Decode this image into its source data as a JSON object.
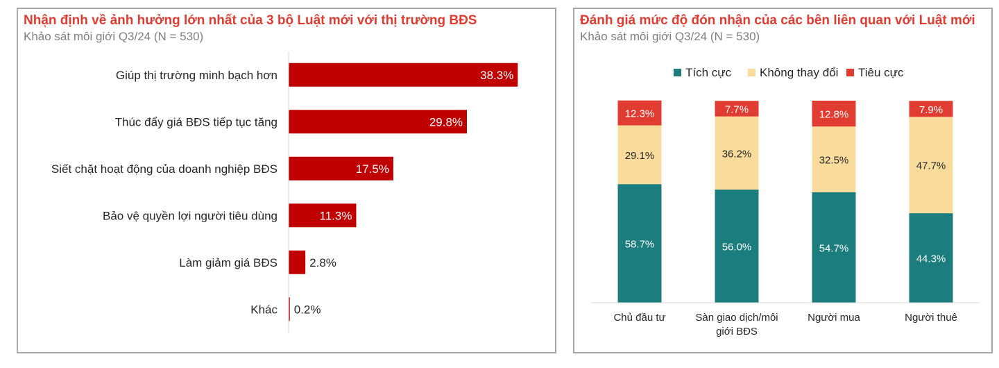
{
  "chart_data": [
    {
      "type": "bar",
      "orientation": "horizontal",
      "title": "Nhận định về ảnh hưởng lớn nhất của 3 bộ Luật mới với thị trường BĐS",
      "subtitle": "Khảo sát môi giới Q3/24 (N = 530)",
      "categories": [
        "Giúp thị trường minh bạch hơn",
        "Thúc đẩy giá BĐS tiếp tục tăng",
        "Siết chặt hoạt động của doanh nghiệp BĐS",
        "Bảo vệ quyền lợi người tiêu dùng",
        "Làm giảm giá BĐS",
        "Khác"
      ],
      "values": [
        38.3,
        29.8,
        17.5,
        11.3,
        2.8,
        0.2
      ],
      "labels": [
        "38.3%",
        "29.8%",
        "17.5%",
        "11.3%",
        "2.8%",
        "0.2%"
      ],
      "xlim": [
        0,
        40
      ],
      "grid": false,
      "color": "#c00000"
    },
    {
      "type": "bar",
      "stacked": true,
      "title": "Đánh giá mức độ đón nhận của các bên liên quan với Luật mới",
      "subtitle": "Khảo sát môi giới Q3/24 (N = 530)",
      "categories": [
        "Chủ đầu tư",
        "Sàn giao dịch/môi giới BĐS",
        "Người mua",
        "Người thuê"
      ],
      "category_lines": [
        [
          "Chủ đầu tư"
        ],
        [
          "Sàn giao dịch/môi",
          "giới BĐS"
        ],
        [
          "Người mua"
        ],
        [
          "Người thuê"
        ]
      ],
      "series": [
        {
          "name": "Tích cực",
          "values": [
            58.7,
            56.0,
            54.7,
            44.3
          ],
          "labels": [
            "58.7%",
            "56.0%",
            "54.7%",
            "44.3%"
          ],
          "color": "#1b7d7d"
        },
        {
          "name": "Không thay đổi",
          "values": [
            29.1,
            36.2,
            32.5,
            47.7
          ],
          "labels": [
            "29.1%",
            "36.2%",
            "32.5%",
            "47.7%"
          ],
          "color": "#f9dc9c"
        },
        {
          "name": "Tiêu cực",
          "values": [
            12.3,
            7.7,
            12.8,
            7.9
          ],
          "labels": [
            "12.3%",
            "7.7%",
            "12.8%",
            "7.9%"
          ],
          "color": "#e03c31"
        }
      ],
      "ylim": [
        0,
        100
      ],
      "legend": "top",
      "grid": false
    }
  ]
}
